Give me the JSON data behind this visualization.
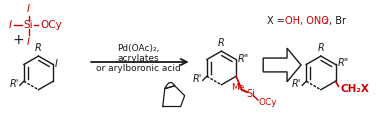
{
  "bg_color": "#ffffff",
  "black": "#1a1a1a",
  "red": "#cc0000",
  "fig_width": 3.78,
  "fig_height": 1.25,
  "dpi": 100,
  "reagents_text": "Pd(OAc)₂,",
  "conditions_line1": "acrylates",
  "conditions_line2": "or arylboronic acid",
  "x_values": "X = OH, ONO₂, Br"
}
